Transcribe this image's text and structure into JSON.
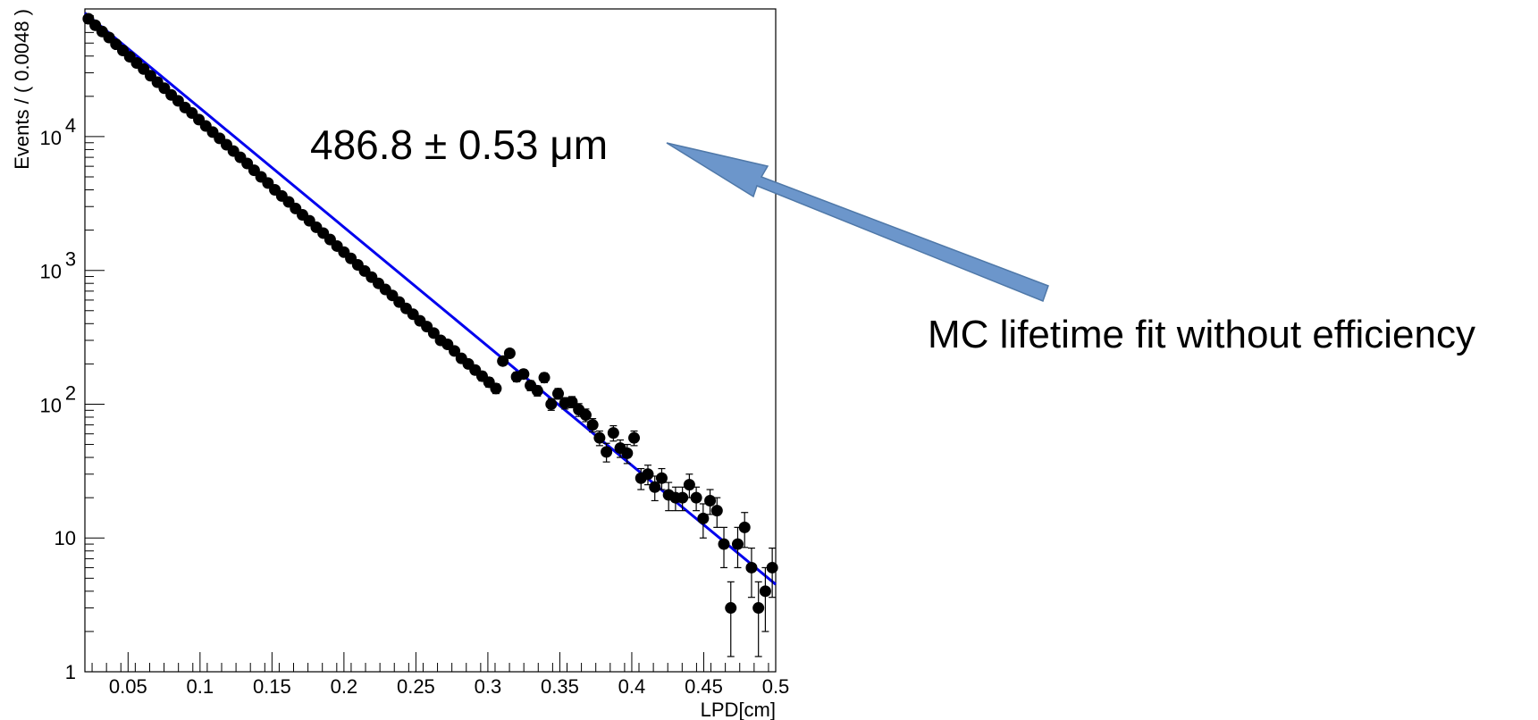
{
  "chart_data": {
    "type": "scatter",
    "title": "",
    "xlabel": "LPD[cm]",
    "ylabel": "Events / ( 0.0048 )",
    "xlim": [
      0.02,
      0.5
    ],
    "ylim": [
      1,
      90000
    ],
    "yscale": "log",
    "grid": false,
    "x_tick_labels": [
      "0.05",
      "0.1",
      "0.15",
      "0.2",
      "0.25",
      "0.3",
      "0.35",
      "0.4",
      "0.45",
      "0.5"
    ],
    "x_ticks": [
      0.05,
      0.1,
      0.15,
      0.2,
      0.25,
      0.3,
      0.35,
      0.4,
      0.45,
      0.5
    ],
    "y_tick_labels": [
      {
        "value": 1,
        "base": "1",
        "exp": ""
      },
      {
        "value": 10,
        "base": "10",
        "exp": ""
      },
      {
        "value": 100,
        "base": "10",
        "exp": "2"
      },
      {
        "value": 1000,
        "base": "10",
        "exp": "3"
      },
      {
        "value": 10000,
        "base": "10",
        "exp": "4"
      }
    ],
    "marker_color": "#000000",
    "fit_color": "#0000ee",
    "series": [
      {
        "type": "points",
        "x": [
          0.0224,
          0.0272,
          0.032,
          0.0368,
          0.0416,
          0.0464,
          0.0512,
          0.056,
          0.0608,
          0.0656,
          0.0704,
          0.0752,
          0.08,
          0.0848,
          0.0896,
          0.0944,
          0.0992,
          0.104,
          0.1088,
          0.1136,
          0.1184,
          0.1232,
          0.128,
          0.1328,
          0.1376,
          0.1424,
          0.1472,
          0.152,
          0.1568,
          0.1616,
          0.1664,
          0.1712,
          0.176,
          0.1808,
          0.1856,
          0.1904,
          0.1952,
          0.2,
          0.2048,
          0.2096,
          0.2144,
          0.2192,
          0.224,
          0.2288,
          0.2336,
          0.2384,
          0.2432,
          0.248,
          0.2528,
          0.2576,
          0.2624,
          0.2672,
          0.272,
          0.2768,
          0.2816,
          0.2864,
          0.2912,
          0.296,
          0.3008,
          0.3056,
          0.3104,
          0.3152,
          0.32,
          0.3248,
          0.3296,
          0.3344,
          0.3392,
          0.344,
          0.3488,
          0.3536,
          0.3584,
          0.3632,
          0.368,
          0.3728,
          0.3776,
          0.3824,
          0.3872,
          0.392,
          0.3968,
          0.4016,
          0.4064,
          0.4112,
          0.416,
          0.4208,
          0.4256,
          0.4304,
          0.4352,
          0.44,
          0.4448,
          0.4496,
          0.4544,
          0.4592,
          0.464,
          0.4688,
          0.4736,
          0.4784,
          0.4832,
          0.488,
          0.4928,
          0.4976
        ],
        "y": [
          76000,
          68000,
          61000,
          55000,
          49000,
          44000,
          39500,
          35500,
          32000,
          28500,
          25500,
          23000,
          20500,
          18500,
          16500,
          15000,
          13400,
          12000,
          10800,
          9700,
          8700,
          7800,
          7000,
          6300,
          5600,
          5000,
          4500,
          4000,
          3600,
          3250,
          2900,
          2600,
          2350,
          2100,
          1900,
          1700,
          1520,
          1370,
          1230,
          1100,
          990,
          890,
          800,
          720,
          650,
          580,
          520,
          470,
          420,
          380,
          340,
          300,
          280,
          250,
          220,
          200,
          180,
          162,
          146,
          131,
          210,
          240,
          160,
          168,
          138,
          126,
          158,
          100,
          120,
          102,
          104,
          91,
          83,
          70,
          56,
          44,
          61,
          47,
          43,
          56,
          28,
          30,
          24,
          28,
          21,
          20,
          20,
          25,
          20,
          14,
          19,
          16,
          9,
          3,
          9,
          12,
          6,
          3,
          4,
          6
        ],
        "yerr": [
          276,
          261,
          247,
          235,
          221,
          210,
          199,
          188,
          179,
          169,
          160,
          152,
          143,
          136,
          128,
          122,
          116,
          110,
          104,
          98,
          93,
          88,
          84,
          79,
          75,
          71,
          67,
          63,
          60,
          57,
          54,
          51,
          48,
          46,
          44,
          41,
          39,
          37,
          35,
          33,
          31,
          30,
          28,
          27,
          25,
          24,
          23,
          22,
          20,
          19,
          18,
          17,
          17,
          16,
          15,
          14,
          13,
          13,
          12,
          11,
          14,
          15,
          13,
          13,
          12,
          11,
          13,
          10,
          11,
          10,
          10,
          10,
          9,
          8,
          7,
          7,
          8,
          7,
          7,
          7,
          5,
          5,
          5,
          5,
          5,
          4,
          4,
          5,
          4,
          4,
          4,
          4,
          3,
          1.7,
          3,
          3.5,
          2.4,
          1.7,
          2,
          2.4
        ]
      },
      {
        "type": "line",
        "x": [
          0.02,
          0.5
        ],
        "y": [
          84000,
          4.5
        ]
      }
    ],
    "annotations": [
      {
        "text": "486.8 ± 0.53 μm"
      },
      {
        "text": "MC lifetime fit without efficiency"
      }
    ],
    "arrow_color": "#6c96cb",
    "arrow_border": "#4f78a8"
  }
}
